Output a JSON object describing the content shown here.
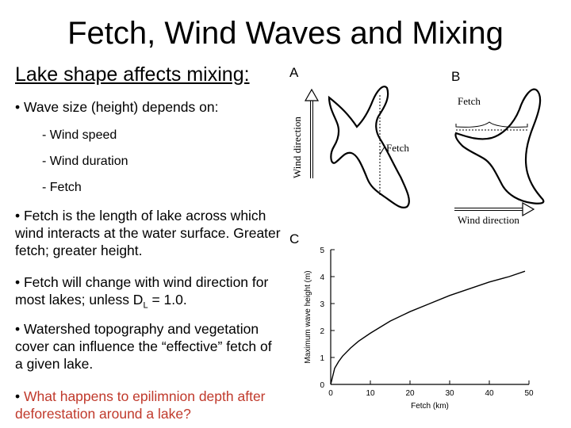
{
  "slide": {
    "title": "Fetch, Wind Waves and Mixing",
    "subtitle": "Lake shape affects mixing:",
    "bullet1": "• Wave size (height) depends on:",
    "sub_items": [
      "- Wind speed",
      "- Wind duration",
      "- Fetch"
    ],
    "bullet2": "• Fetch is the length of lake across which wind interacts at the water surface.  Greater fetch; greater height.",
    "bullet3_pre": "• Fetch will change with wind direction for most lakes; unless D",
    "bullet3_sub": "L",
    "bullet3_post": " = 1.0.",
    "bullet4": "• Watershed topography and vegetation cover can influence the “effective” fetch of a given lake.",
    "bullet5_marker": "• ",
    "bullet5": "What happens to epilimnion depth after deforestation around a lake?"
  },
  "figure": {
    "panel_a_label": "A",
    "panel_b_label": "B",
    "panel_c_label": "C",
    "wind_direction_label_a": "Wind direction",
    "wind_direction_label_b": "Wind direction",
    "fetch_label_a": "Fetch",
    "fetch_label_b": "Fetch"
  },
  "chart_data": {
    "type": "line",
    "xlabel": "Fetch (km)",
    "ylabel": "Maximum wave height (m)",
    "xlim": [
      0,
      50
    ],
    "ylim": [
      0,
      5
    ],
    "xticks": [
      0,
      10,
      20,
      30,
      40,
      50
    ],
    "yticks": [
      0,
      1,
      2,
      3,
      4,
      5
    ],
    "series": [
      {
        "x": [
          0,
          1,
          2,
          3,
          5,
          7,
          10,
          15,
          20,
          25,
          30,
          35,
          40,
          45,
          49
        ],
        "y": [
          0,
          0.6,
          0.85,
          1.05,
          1.35,
          1.6,
          1.9,
          2.35,
          2.7,
          3.0,
          3.3,
          3.55,
          3.8,
          4.0,
          4.2
        ]
      }
    ],
    "colors": {
      "line": "#000000"
    }
  }
}
